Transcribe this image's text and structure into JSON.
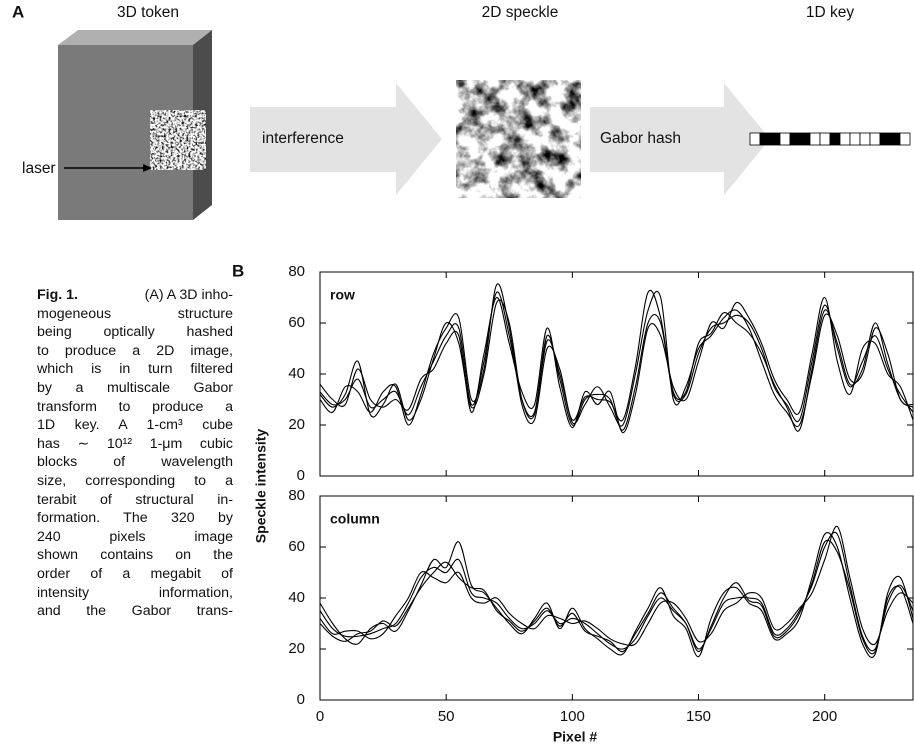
{
  "panel_a": {
    "label": "A",
    "token": "3D token",
    "speckle": "2D speckle",
    "key": "1D key",
    "laser": "laser",
    "interference": "interference",
    "gabor": "Gabor hash"
  },
  "panel_b": {
    "label": "B"
  },
  "caption": {
    "label": "Fig. 1.",
    "lines": [
      "(A) A 3D inho-",
      "mogeneous structure",
      "being optically hashed",
      "to produce a 2D image,",
      "which is in turn filtered",
      "by a multiscale Gabor",
      "transform to produce a",
      "1D key. A 1-cm³ cube",
      "has ∼ 10¹² 1-μm cubic",
      "blocks of wavelength",
      "size, corresponding to a",
      "terabit of structural in-",
      "formation. The 320 by",
      "240 pixels image",
      "shown contains on the",
      "order of a megabit of",
      "intensity information,",
      "and the Gabor trans-"
    ]
  },
  "chart_data": [
    {
      "type": "line",
      "panel_label": "row",
      "ylabel": "Speckle intensity",
      "color": "#000000",
      "xlim": [
        0,
        235
      ],
      "ylim": [
        0,
        80
      ],
      "xticks": [
        0,
        50,
        100,
        150,
        200
      ],
      "yticks": [
        0,
        20,
        40,
        60,
        80
      ],
      "x": [
        0,
        5,
        10,
        15,
        20,
        25,
        30,
        35,
        40,
        45,
        50,
        55,
        60,
        65,
        70,
        75,
        80,
        85,
        90,
        95,
        100,
        105,
        110,
        115,
        120,
        125,
        130,
        135,
        140,
        145,
        150,
        155,
        160,
        165,
        170,
        175,
        180,
        185,
        190,
        195,
        200,
        205,
        210,
        215,
        220,
        225,
        230,
        235
      ],
      "series": [
        {
          "values": [
            33,
            28,
            30,
            38,
            27,
            30,
            33,
            24,
            35,
            45,
            55,
            58,
            28,
            45,
            72,
            55,
            30,
            25,
            55,
            38,
            20,
            30,
            32,
            30,
            18,
            35,
            60,
            60,
            32,
            32,
            48,
            58,
            60,
            63,
            60,
            50,
            35,
            28,
            22,
            45,
            67,
            50,
            35,
            45,
            55,
            42,
            32,
            25
          ]
        },
        {
          "values": [
            30,
            25,
            35,
            33,
            25,
            33,
            35,
            20,
            32,
            48,
            58,
            62,
            30,
            42,
            75,
            58,
            28,
            22,
            50,
            42,
            21,
            28,
            35,
            27,
            20,
            40,
            65,
            70,
            30,
            35,
            50,
            55,
            62,
            65,
            58,
            45,
            32,
            25,
            20,
            40,
            63,
            55,
            38,
            40,
            58,
            48,
            30,
            28
          ]
        },
        {
          "values": [
            36,
            30,
            28,
            42,
            30,
            27,
            30,
            26,
            38,
            42,
            52,
            55,
            25,
            48,
            70,
            52,
            33,
            28,
            58,
            35,
            19,
            33,
            28,
            33,
            17,
            32,
            58,
            55,
            35,
            30,
            45,
            60,
            58,
            68,
            62,
            52,
            38,
            30,
            25,
            48,
            70,
            45,
            32,
            50,
            52,
            40,
            35,
            22
          ]
        },
        {
          "values": [
            32,
            27,
            32,
            45,
            24,
            28,
            36,
            22,
            30,
            46,
            60,
            52,
            27,
            40,
            68,
            60,
            30,
            24,
            53,
            40,
            22,
            31,
            30,
            29,
            22,
            43,
            72,
            62,
            33,
            33,
            52,
            56,
            64,
            60,
            56,
            48,
            36,
            27,
            18,
            42,
            65,
            52,
            36,
            42,
            60,
            44,
            30,
            27
          ]
        }
      ]
    },
    {
      "type": "line",
      "panel_label": "column",
      "xlabel": "Pixel #",
      "color": "#000000",
      "xlim": [
        0,
        235
      ],
      "ylim": [
        0,
        80
      ],
      "xticks": [
        0,
        50,
        100,
        150,
        200
      ],
      "yticks": [
        0,
        20,
        40,
        60,
        80
      ],
      "x": [
        0,
        5,
        10,
        15,
        20,
        25,
        30,
        35,
        40,
        45,
        50,
        55,
        60,
        65,
        70,
        75,
        80,
        85,
        90,
        95,
        100,
        105,
        110,
        115,
        120,
        125,
        130,
        135,
        140,
        145,
        150,
        155,
        160,
        165,
        170,
        175,
        180,
        185,
        190,
        195,
        200,
        205,
        210,
        215,
        220,
        225,
        230,
        235
      ],
      "series": [
        {
          "values": [
            35,
            28,
            25,
            25,
            26,
            28,
            30,
            38,
            48,
            52,
            50,
            55,
            42,
            40,
            38,
            32,
            28,
            30,
            35,
            30,
            32,
            30,
            26,
            22,
            20,
            24,
            33,
            40,
            35,
            30,
            20,
            28,
            38,
            40,
            40,
            38,
            26,
            28,
            35,
            45,
            60,
            65,
            45,
            25,
            20,
            38,
            45,
            35
          ]
        },
        {
          "values": [
            38,
            30,
            24,
            22,
            28,
            30,
            27,
            35,
            45,
            55,
            52,
            62,
            45,
            42,
            36,
            30,
            26,
            32,
            38,
            28,
            36,
            28,
            24,
            20,
            18,
            27,
            36,
            44,
            33,
            28,
            17,
            32,
            42,
            44,
            38,
            35,
            24,
            26,
            32,
            48,
            65,
            60,
            40,
            22,
            18,
            42,
            48,
            32
          ]
        },
        {
          "values": [
            32,
            26,
            27,
            27,
            24,
            26,
            33,
            40,
            50,
            48,
            46,
            50,
            40,
            38,
            40,
            34,
            30,
            28,
            33,
            32,
            30,
            31,
            28,
            24,
            22,
            22,
            30,
            38,
            38,
            32,
            23,
            26,
            35,
            38,
            42,
            40,
            28,
            30,
            36,
            42,
            55,
            68,
            48,
            28,
            22,
            35,
            42,
            38
          ]
        },
        {
          "values": [
            30,
            25,
            23,
            26,
            27,
            31,
            29,
            36,
            44,
            50,
            54,
            48,
            44,
            43,
            35,
            31,
            27,
            31,
            36,
            29,
            34,
            27,
            25,
            23,
            19,
            26,
            34,
            42,
            36,
            30,
            19,
            29,
            40,
            46,
            39,
            37,
            25,
            27,
            34,
            46,
            62,
            58,
            43,
            24,
            19,
            40,
            44,
            30
          ]
        }
      ]
    }
  ]
}
